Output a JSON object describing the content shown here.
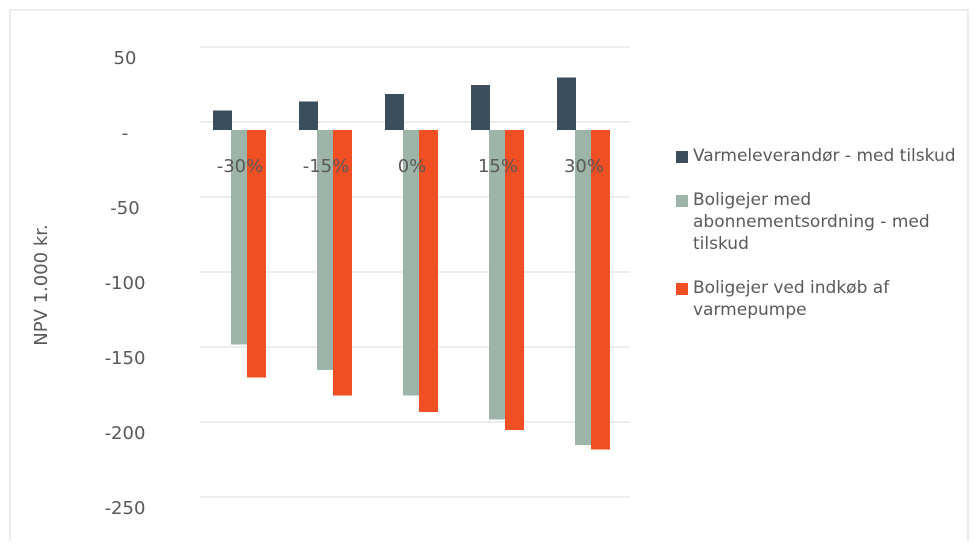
{
  "chart_data": {
    "type": "bar",
    "y_label": "NPV 1.000 kr.",
    "categories": [
      "-30%",
      "-15%",
      "0%",
      "15%",
      "30%"
    ],
    "series": [
      {
        "name": "Varmeleverandør - med tilskud",
        "color": "#3b4e5e",
        "values": [
          13,
          19,
          24,
          30,
          35
        ]
      },
      {
        "name": "Boligejer med abonnementsordning - med tilskud",
        "color": "#9cb5a8",
        "values": [
          -143,
          -160,
          -177,
          -193,
          -210
        ]
      },
      {
        "name": "Boligejer ved indkøb af varmepumpe",
        "color": "#f04e23",
        "values": [
          -165,
          -177,
          -188,
          -200,
          -213
        ]
      }
    ],
    "ylim": [
      -250,
      50
    ],
    "yticks": [
      -250,
      -200,
      -150,
      -100,
      -50,
      {
        "value": 0,
        "label": "-"
      },
      50
    ],
    "grid": true,
    "legend": "right"
  }
}
